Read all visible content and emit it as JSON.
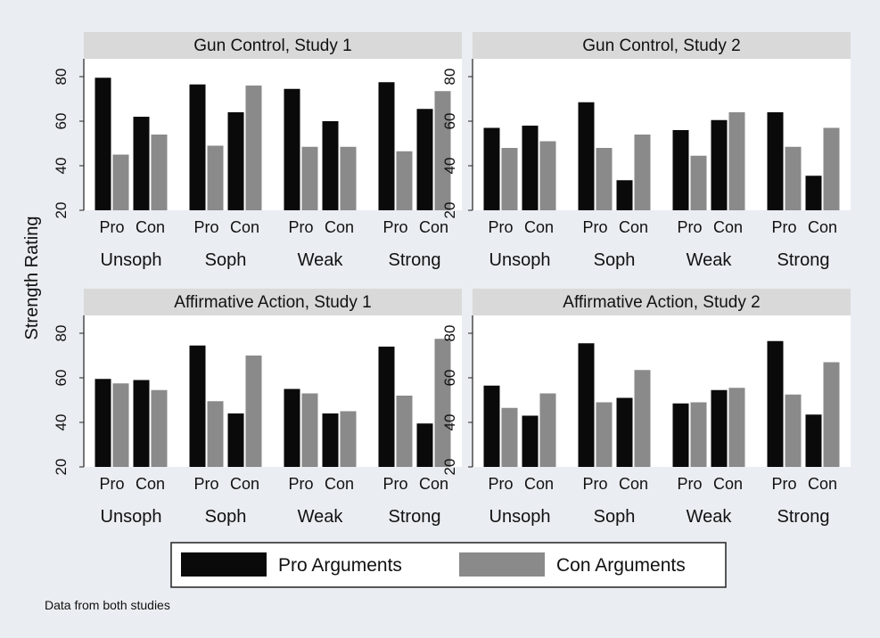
{
  "chart_data": [
    {
      "type": "bar",
      "title": "Gun Control, Study 1",
      "ylabel": "Strength Rating",
      "ylim": [
        20,
        88
      ],
      "yticks": [
        20,
        40,
        60,
        80
      ],
      "groups": [
        "Unsoph",
        "Soph",
        "Weak",
        "Strong"
      ],
      "subgroups": [
        "Pro",
        "Con"
      ],
      "series": [
        {
          "name": "Pro Arguments",
          "values": [
            [
              79.5,
              62
            ],
            [
              76.5,
              64
            ],
            [
              74.5,
              60
            ],
            [
              77.5,
              65.5
            ]
          ]
        },
        {
          "name": "Con Arguments",
          "values": [
            [
              45,
              54
            ],
            [
              49,
              76
            ],
            [
              48.5,
              48.5
            ],
            [
              46.5,
              73.5
            ]
          ]
        }
      ]
    },
    {
      "type": "bar",
      "title": "Gun Control, Study 2",
      "ylim": [
        20,
        88
      ],
      "yticks": [
        20,
        40,
        60,
        80
      ],
      "groups": [
        "Unsoph",
        "Soph",
        "Weak",
        "Strong"
      ],
      "subgroups": [
        "Pro",
        "Con"
      ],
      "series": [
        {
          "name": "Pro Arguments",
          "values": [
            [
              57,
              58
            ],
            [
              68.5,
              33.5
            ],
            [
              56,
              60.5
            ],
            [
              64,
              35.5
            ]
          ]
        },
        {
          "name": "Con Arguments",
          "values": [
            [
              48,
              51
            ],
            [
              48,
              54
            ],
            [
              44.5,
              64
            ],
            [
              48.5,
              57
            ]
          ]
        }
      ]
    },
    {
      "type": "bar",
      "title": "Affirmative Action, Study 1",
      "ylim": [
        20,
        88
      ],
      "yticks": [
        20,
        40,
        60,
        80
      ],
      "groups": [
        "Unsoph",
        "Soph",
        "Weak",
        "Strong"
      ],
      "subgroups": [
        "Pro",
        "Con"
      ],
      "series": [
        {
          "name": "Pro Arguments",
          "values": [
            [
              59.5,
              59
            ],
            [
              74.5,
              44
            ],
            [
              55,
              44
            ],
            [
              74,
              39.5
            ]
          ]
        },
        {
          "name": "Con Arguments",
          "values": [
            [
              57.5,
              54.5
            ],
            [
              49.5,
              70
            ],
            [
              53,
              45
            ],
            [
              52,
              77.5
            ]
          ]
        }
      ]
    },
    {
      "type": "bar",
      "title": "Affirmative Action, Study 2",
      "ylim": [
        20,
        88
      ],
      "yticks": [
        20,
        40,
        60,
        80
      ],
      "groups": [
        "Unsoph",
        "Soph",
        "Weak",
        "Strong"
      ],
      "subgroups": [
        "Pro",
        "Con"
      ],
      "series": [
        {
          "name": "Pro Arguments",
          "values": [
            [
              56.5,
              43
            ],
            [
              75.5,
              51
            ],
            [
              48.5,
              54.5
            ],
            [
              76.5,
              43.5
            ]
          ]
        },
        {
          "name": "Con Arguments",
          "values": [
            [
              46.5,
              53
            ],
            [
              49,
              63.5
            ],
            [
              49,
              55.5
            ],
            [
              52.5,
              67
            ]
          ]
        }
      ]
    }
  ],
  "legend": {
    "items": [
      {
        "label": "Pro Arguments",
        "color": "#0a0a0a"
      },
      {
        "label": "Con Arguments",
        "color": "#8a8a8a"
      }
    ]
  },
  "colors": {
    "pro": "#0a0a0a",
    "con": "#8a8a8a",
    "plot_bg": "#ffffff",
    "header_bg": "#d9d9d9",
    "page_bg": "#eaedf1"
  },
  "note": "Data from both studies"
}
